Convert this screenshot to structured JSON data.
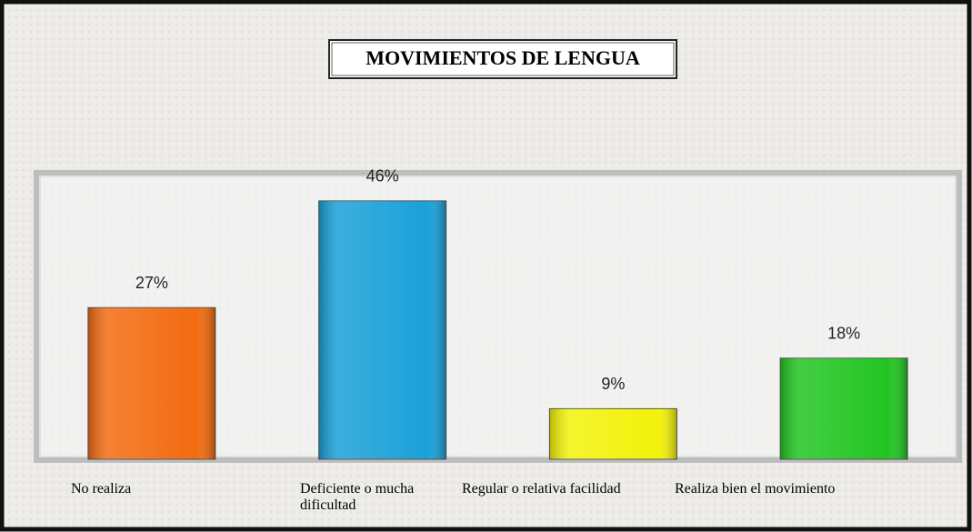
{
  "chart_data": {
    "type": "bar",
    "title": "MOVIMIENTOS DE LENGUA",
    "categories": [
      "No realiza",
      "Deficiente o mucha dificultad",
      "Regular o relativa facilidad",
      "Realiza bien el movimiento"
    ],
    "values": [
      27,
      46,
      9,
      18
    ],
    "value_labels": [
      "27%",
      "46%",
      "9%",
      "18%"
    ],
    "colors": [
      "#f26b10",
      "#1aa0d8",
      "#f2f20a",
      "#22c522"
    ],
    "ylim": [
      0,
      51
    ]
  }
}
